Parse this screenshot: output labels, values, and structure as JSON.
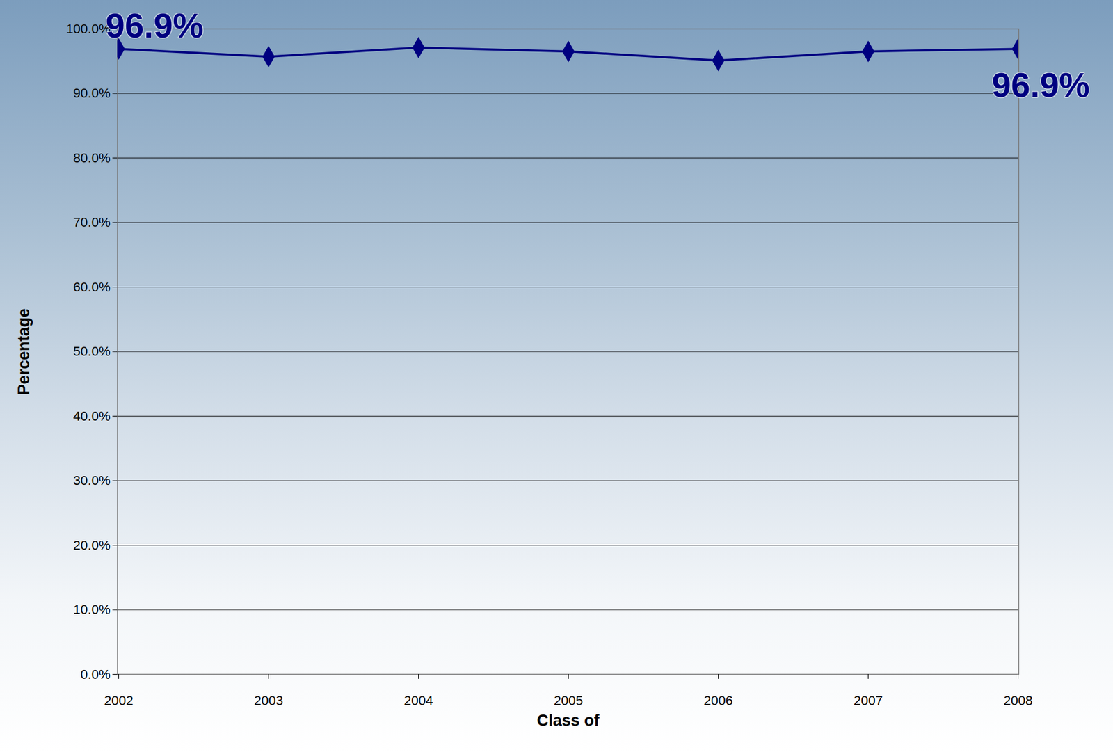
{
  "chart_data": {
    "type": "line",
    "x_label": "Class of",
    "y_label": "Percentage",
    "categories": [
      "2002",
      "2003",
      "2004",
      "2005",
      "2006",
      "2007",
      "2008"
    ],
    "values": [
      96.9,
      95.7,
      97.1,
      96.5,
      95.1,
      96.5,
      96.9
    ],
    "color": "#000080",
    "marker": "diamond",
    "ylim": [
      0,
      100
    ],
    "yticks": [
      {
        "value": 0,
        "label": "0.0%"
      },
      {
        "value": 10,
        "label": "10.0%"
      },
      {
        "value": 20,
        "label": "20.0%"
      },
      {
        "value": 30,
        "label": "30.0%"
      },
      {
        "value": 40,
        "label": "40.0%"
      },
      {
        "value": 50,
        "label": "50.0%"
      },
      {
        "value": 60,
        "label": "60.0%"
      },
      {
        "value": 70,
        "label": "70.0%"
      },
      {
        "value": 80,
        "label": "80.0%"
      },
      {
        "value": 90,
        "label": "90.0%"
      },
      {
        "value": 100,
        "label": "100.0%"
      }
    ],
    "grid": true,
    "annotations": [
      {
        "text": "96.9%",
        "category": "2002"
      },
      {
        "text": "96.9%",
        "category": "2008"
      }
    ]
  }
}
